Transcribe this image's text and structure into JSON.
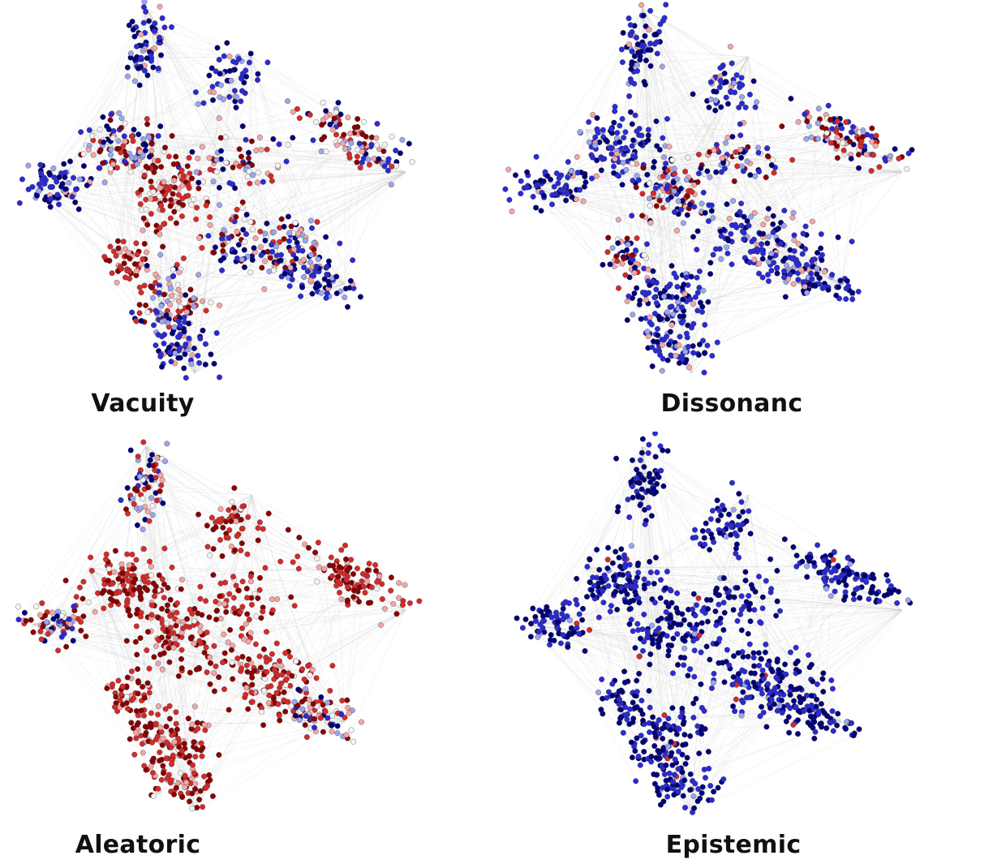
{
  "chart_data": [
    {
      "type": "scatter",
      "title": "Vacuity",
      "colormap": [
        "#00007a",
        "#2a2ad6",
        "#9aa6ee",
        "#f4f4f4",
        "#f2a6a6",
        "#d62a2a",
        "#8a0000"
      ],
      "edge_color": "#c8c8c8",
      "cluster_mix": [
        "low",
        "low",
        "mixed",
        "mixed",
        "low",
        "high",
        "mixed",
        "mixed",
        "high",
        "mixed",
        "low",
        "low"
      ]
    },
    {
      "type": "scatter",
      "title": "Dissonanc",
      "colormap": [
        "#00007a",
        "#2a2ad6",
        "#9aa6ee",
        "#f4f4f4",
        "#f2a6a6",
        "#d62a2a",
        "#8a0000"
      ],
      "edge_color": "#c8c8c8",
      "cluster_mix": [
        "low",
        "low",
        "mixed",
        "low",
        "low",
        "mixed",
        "mixed",
        "low",
        "mixed",
        "low",
        "low",
        "low"
      ]
    },
    {
      "type": "scatter",
      "title": "Aleatoric",
      "colormap": [
        "#00007a",
        "#2a2ad6",
        "#9aa6ee",
        "#f4f4f4",
        "#f2a6a6",
        "#d62a2a",
        "#8a0000"
      ],
      "edge_color": "#c8c8c8",
      "cluster_mix": [
        "mixed",
        "high",
        "high",
        "high",
        "mixed",
        "high",
        "high",
        "high",
        "high",
        "high",
        "high",
        "mixed"
      ]
    },
    {
      "type": "scatter",
      "title": "Epistemic",
      "colormap": [
        "#00007a",
        "#2a2ad6",
        "#9aa6ee",
        "#f4f4f4",
        "#f2a6a6",
        "#d62a2a",
        "#8a0000"
      ],
      "edge_color": "#c8c8c8",
      "cluster_mix": [
        "verylow",
        "verylow",
        "verylow",
        "verylow",
        "verylow",
        "verylow",
        "verylow",
        "verylow",
        "verylow",
        "verylow",
        "verylow",
        "verylow"
      ]
    }
  ]
}
